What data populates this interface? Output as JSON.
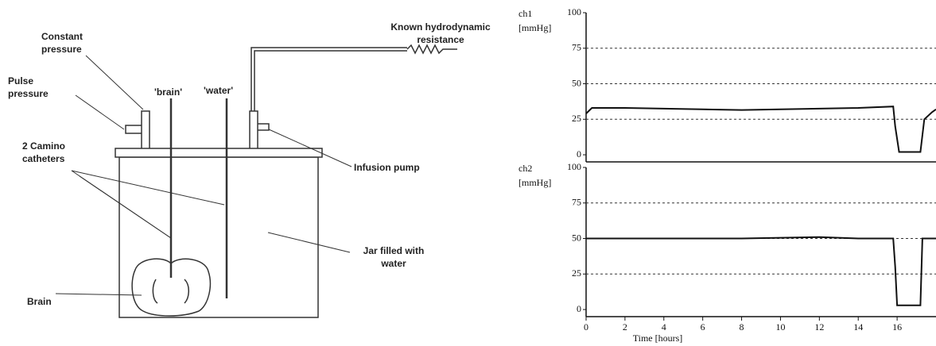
{
  "diagram": {
    "constant_pressure": "Constant pressure",
    "pulse_pressure": "Pulse pressure",
    "brain_rod": "'brain'",
    "water_rod": "'water'",
    "resistance": "Known hydrodynamic resistance",
    "catheters": "2 Camino catheters",
    "infusion_pump": "Infusion pump",
    "jar": "Jar filled with water",
    "brain": "Brain"
  },
  "chart_data": [
    {
      "type": "line",
      "y_label": "ch1",
      "y_unit": "[mmHg]",
      "color": "#111111",
      "x": [
        0,
        0.3,
        2,
        4,
        6,
        8,
        10,
        12,
        14,
        15.8,
        15.9,
        16.1,
        17.1,
        17.2,
        17.4,
        17.8,
        18
      ],
      "values": [
        29,
        33,
        33,
        32.5,
        32,
        31.5,
        32,
        32.5,
        33,
        34,
        20,
        2,
        2,
        2,
        25,
        30,
        32
      ],
      "xlim": [
        0,
        18
      ],
      "ylim": [
        -5,
        100
      ],
      "yticks": [
        0,
        25,
        50,
        75,
        100
      ],
      "grid": true
    },
    {
      "type": "line",
      "y_label": "ch2",
      "y_unit": "[mmHg]",
      "x_label": "Time [hours]",
      "color": "#111111",
      "x": [
        0,
        2,
        4,
        8,
        12,
        14,
        15.8,
        15.9,
        16,
        17.2,
        17.3,
        18
      ],
      "values": [
        50,
        50,
        50,
        50,
        51,
        50,
        50,
        30,
        3,
        3,
        50,
        50
      ],
      "xlim": [
        0,
        18
      ],
      "xticks": [
        0,
        2,
        4,
        6,
        8,
        10,
        12,
        14,
        16
      ],
      "ylim": [
        -5,
        100
      ],
      "yticks": [
        0,
        25,
        50,
        75,
        100
      ],
      "grid": true
    }
  ]
}
